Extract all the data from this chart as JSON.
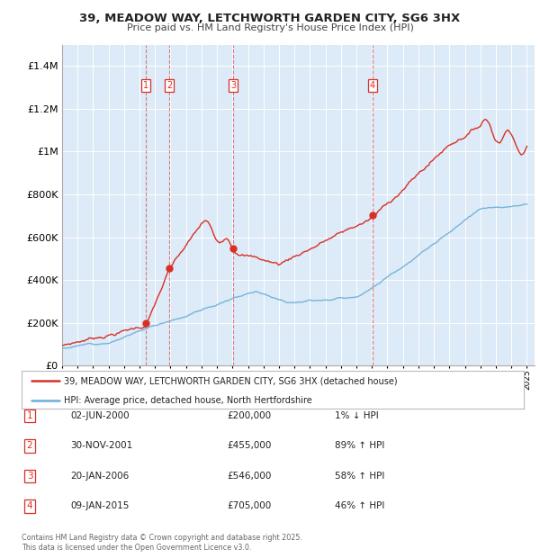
{
  "title1": "39, MEADOW WAY, LETCHWORTH GARDEN CITY, SG6 3HX",
  "title2": "Price paid vs. HM Land Registry's House Price Index (HPI)",
  "legend_line1": "39, MEADOW WAY, LETCHWORTH GARDEN CITY, SG6 3HX (detached house)",
  "legend_line2": "HPI: Average price, detached house, North Hertfordshire",
  "footnote": "Contains HM Land Registry data © Crown copyright and database right 2025.\nThis data is licensed under the Open Government Licence v3.0.",
  "transactions": [
    {
      "num": 1,
      "date": "02-JUN-2000",
      "price": 200000,
      "pct": "1%",
      "dir": "↓",
      "year_x": 2000.42
    },
    {
      "num": 2,
      "date": "30-NOV-2001",
      "price": 455000,
      "pct": "89%",
      "dir": "↑",
      "year_x": 2001.92
    },
    {
      "num": 3,
      "date": "20-JAN-2006",
      "price": 546000,
      "pct": "58%",
      "dir": "↑",
      "year_x": 2006.05
    },
    {
      "num": 4,
      "date": "09-JAN-2015",
      "price": 705000,
      "pct": "46%",
      "dir": "↑",
      "year_x": 2015.03
    }
  ],
  "hpi_color": "#6baed6",
  "price_color": "#d73027",
  "vline_color": "#d73027",
  "bg_color": "#ddeaf7",
  "ylim": [
    0,
    1500000
  ],
  "yticks": [
    0,
    200000,
    400000,
    600000,
    800000,
    1000000,
    1200000,
    1400000
  ],
  "ytick_labels": [
    "£0",
    "£200K",
    "£400K",
    "£600K",
    "£800K",
    "£1M",
    "£1.2M",
    "£1.4M"
  ],
  "xlim_start": 1995,
  "xlim_end": 2025.5
}
